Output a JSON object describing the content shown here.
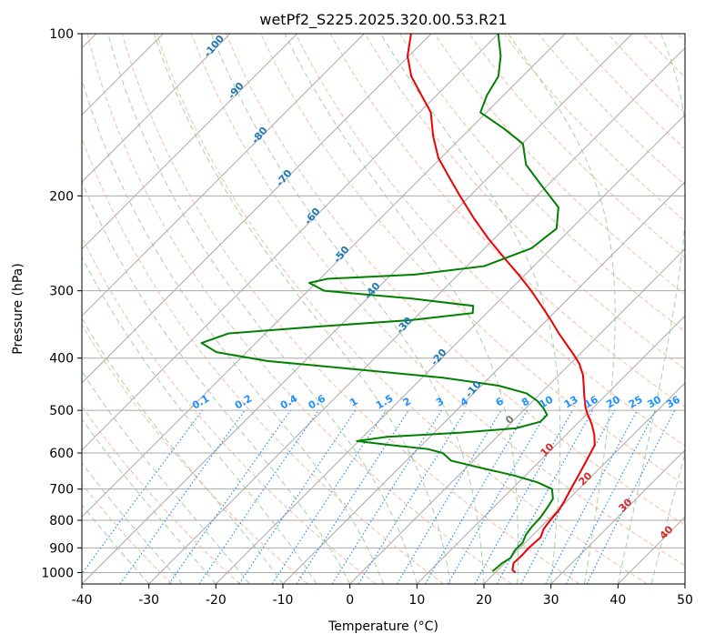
{
  "chart_data": {
    "type": "skew-t",
    "title": "wetPf2_S225.2025.320.00.53.R21",
    "xlabel": "Temperature (°C)",
    "ylabel": "Pressure (hPa)",
    "xlim": [
      -40,
      50
    ],
    "ylim": [
      1050,
      100
    ],
    "y_scale": "log",
    "grid": true,
    "x_ticks": [
      -40,
      -30,
      -20,
      -10,
      0,
      10,
      20,
      30,
      40,
      50
    ],
    "y_ticks": [
      1000,
      900,
      800,
      700,
      600,
      500,
      400,
      300,
      200,
      100
    ],
    "series": [
      {
        "role": "temperature",
        "color": "#ee0000",
        "points": [
          {
            "p": 1000,
            "t": 23.0
          },
          {
            "p": 990,
            "t": 22.2
          },
          {
            "p": 960,
            "t": 21.3
          },
          {
            "p": 930,
            "t": 21.4
          },
          {
            "p": 900,
            "t": 21.3
          },
          {
            "p": 860,
            "t": 21.5
          },
          {
            "p": 830,
            "t": 20.7
          },
          {
            "p": 800,
            "t": 20.4
          },
          {
            "p": 770,
            "t": 20.2
          },
          {
            "p": 740,
            "t": 19.7
          },
          {
            "p": 700,
            "t": 18.8
          },
          {
            "p": 660,
            "t": 17.9
          },
          {
            "p": 620,
            "t": 16.9
          },
          {
            "p": 580,
            "t": 15.8
          },
          {
            "p": 555,
            "t": 14.2
          },
          {
            "p": 530,
            "t": 12.2
          },
          {
            "p": 505,
            "t": 9.8
          },
          {
            "p": 490,
            "t": 8.5
          },
          {
            "p": 470,
            "t": 6.9
          },
          {
            "p": 450,
            "t": 5.3
          },
          {
            "p": 430,
            "t": 3.6
          },
          {
            "p": 410,
            "t": 1.4
          },
          {
            "p": 395,
            "t": -0.7
          },
          {
            "p": 380,
            "t": -3.0
          },
          {
            "p": 360,
            "t": -6.2
          },
          {
            "p": 340,
            "t": -9.4
          },
          {
            "p": 320,
            "t": -12.9
          },
          {
            "p": 300,
            "t": -16.7
          },
          {
            "p": 280,
            "t": -21.0
          },
          {
            "p": 260,
            "t": -25.8
          },
          {
            "p": 240,
            "t": -30.9
          },
          {
            "p": 220,
            "t": -36.1
          },
          {
            "p": 200,
            "t": -41.5
          },
          {
            "p": 185,
            "t": -45.8
          },
          {
            "p": 170,
            "t": -50.4
          },
          {
            "p": 155,
            "t": -54.4
          },
          {
            "p": 140,
            "t": -58.3
          },
          {
            "p": 130,
            "t": -62.3
          },
          {
            "p": 120,
            "t": -66.6
          },
          {
            "p": 110,
            "t": -70.2
          },
          {
            "p": 100,
            "t": -73.0
          }
        ]
      },
      {
        "role": "dewpoint",
        "color": "#008000",
        "points": [
          {
            "p": 995,
            "t": 19.4
          },
          {
            "p": 980,
            "t": 19.5
          },
          {
            "p": 960,
            "t": 19.6
          },
          {
            "p": 940,
            "t": 20.1
          },
          {
            "p": 910,
            "t": 19.6
          },
          {
            "p": 880,
            "t": 19.6
          },
          {
            "p": 850,
            "t": 18.9
          },
          {
            "p": 820,
            "t": 18.6
          },
          {
            "p": 790,
            "t": 18.5
          },
          {
            "p": 760,
            "t": 18.1
          },
          {
            "p": 730,
            "t": 17.6
          },
          {
            "p": 700,
            "t": 16.0
          },
          {
            "p": 680,
            "t": 12.8
          },
          {
            "p": 660,
            "t": 8.2
          },
          {
            "p": 640,
            "t": 2.4
          },
          {
            "p": 620,
            "t": -3.3
          },
          {
            "p": 600,
            "t": -5.7
          },
          {
            "p": 590,
            "t": -8.5
          },
          {
            "p": 580,
            "t": -14.7
          },
          {
            "p": 570,
            "t": -20.3
          },
          {
            "p": 560,
            "t": -16.4
          },
          {
            "p": 550,
            "t": -6.0
          },
          {
            "p": 540,
            "t": 1.5
          },
          {
            "p": 525,
            "t": 4.2
          },
          {
            "p": 510,
            "t": 4.2
          },
          {
            "p": 495,
            "t": 2.6
          },
          {
            "p": 480,
            "t": 0.6
          },
          {
            "p": 465,
            "t": -2.1
          },
          {
            "p": 450,
            "t": -7.4
          },
          {
            "p": 435,
            "t": -16.9
          },
          {
            "p": 420,
            "t": -30.8
          },
          {
            "p": 405,
            "t": -45.6
          },
          {
            "p": 390,
            "t": -54.5
          },
          {
            "p": 375,
            "t": -58.1
          },
          {
            "p": 360,
            "t": -55.5
          },
          {
            "p": 350,
            "t": -43.8
          },
          {
            "p": 340,
            "t": -30.2
          },
          {
            "p": 330,
            "t": -22.1
          },
          {
            "p": 320,
            "t": -23.1
          },
          {
            "p": 310,
            "t": -33.5
          },
          {
            "p": 300,
            "t": -47.6
          },
          {
            "p": 290,
            "t": -51.0
          },
          {
            "p": 285,
            "t": -48.9
          },
          {
            "p": 280,
            "t": -36.5
          },
          {
            "p": 270,
            "t": -27.4
          },
          {
            "p": 250,
            "t": -23.0
          },
          {
            "p": 230,
            "t": -22.2
          },
          {
            "p": 210,
            "t": -25.1
          },
          {
            "p": 190,
            "t": -31.3
          },
          {
            "p": 175,
            "t": -36.3
          },
          {
            "p": 160,
            "t": -39.9
          },
          {
            "p": 150,
            "t": -45.0
          },
          {
            "p": 140,
            "t": -50.9
          },
          {
            "p": 130,
            "t": -52.5
          },
          {
            "p": 120,
            "t": -53.6
          },
          {
            "p": 110,
            "t": -56.3
          },
          {
            "p": 100,
            "t": -60.0
          }
        ]
      }
    ],
    "dry_adiabat_labels": [
      "-100",
      "-90",
      "-80",
      "-70",
      "-60",
      "-50",
      "-40",
      "-30",
      "-20",
      "-10"
    ],
    "moist_adiabat_labels": [
      "0",
      "10",
      "20",
      "30",
      "40"
    ],
    "mixing_ratio_labels": [
      "0.1",
      "0.2",
      "0.4",
      "0.6",
      "1",
      "1.5",
      "2",
      "3",
      "4",
      "6",
      "8",
      "10",
      "13",
      "16",
      "20",
      "25",
      "30",
      "36"
    ],
    "colors": {
      "isotherm": "#aaaaaa",
      "dry_adiabat": "#f4a582",
      "moist_adiabat": "#8fc58f",
      "mixing_ratio": "#1e90ff",
      "dry_label": "#1f78b4",
      "moist_label": "#d62728"
    }
  }
}
